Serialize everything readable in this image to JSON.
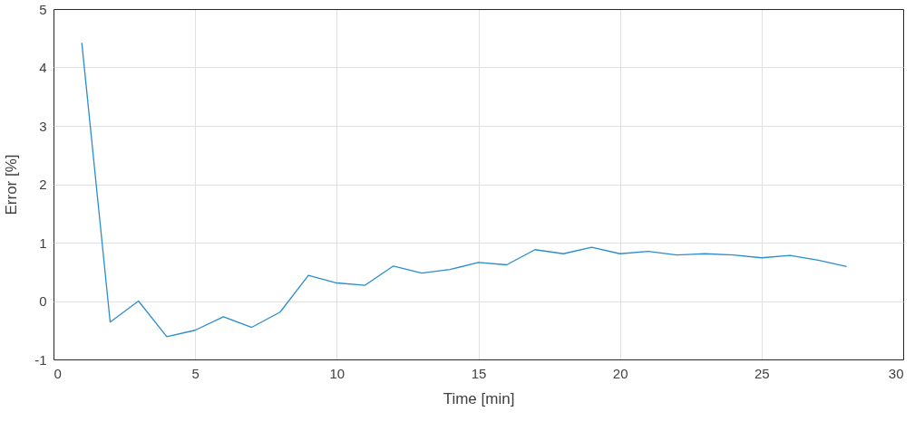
{
  "chart_data": {
    "type": "line",
    "xlabel": "Time [min]",
    "ylabel": "Error [%]",
    "x": [
      1,
      2,
      3,
      4,
      5,
      6,
      7,
      8,
      9,
      10,
      11,
      12,
      13,
      14,
      15,
      16,
      17,
      18,
      19,
      20,
      21,
      22,
      23,
      24,
      25,
      26,
      27,
      28
    ],
    "series": [
      {
        "color": "#2b8cce",
        "values": [
          4.42,
          -0.36,
          0.0,
          -0.61,
          -0.5,
          -0.27,
          -0.45,
          -0.19,
          0.44,
          0.31,
          0.27,
          0.6,
          0.48,
          0.54,
          0.66,
          0.62,
          0.88,
          0.81,
          0.92,
          0.81,
          0.85,
          0.79,
          0.81,
          0.79,
          0.74,
          0.78,
          0.7,
          0.59
        ]
      }
    ],
    "xlim": [
      0,
      30
    ],
    "xticks": [
      0,
      5,
      10,
      15,
      20,
      25,
      30
    ],
    "ylim": [
      -1,
      5
    ],
    "yticks": [
      -1,
      0,
      1,
      2,
      3,
      4,
      5
    ],
    "grid": true,
    "marker": "none",
    "line_style": "solid"
  }
}
